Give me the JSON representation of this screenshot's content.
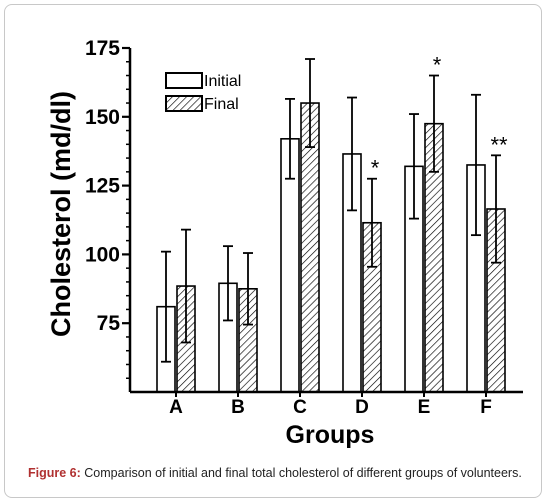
{
  "caption": {
    "label": "Figure 6:",
    "text": " Comparison of initial and final total cholesterol of different groups of volunteers."
  },
  "colors": {
    "axis": "#000000",
    "bar_fill_initial": "#ffffff",
    "hatch": "#000000",
    "frame_border": "#c8c8c8",
    "caption_label": "#b03030"
  },
  "chart_data": {
    "type": "bar",
    "title": "",
    "xlabel": "Groups",
    "ylabel": "Cholesterol (md/dl)",
    "ylim": [
      50,
      175
    ],
    "yticks": [
      75,
      100,
      125,
      150,
      175
    ],
    "grid": false,
    "legend_position": "top-left",
    "categories": [
      "A",
      "B",
      "C",
      "D",
      "E",
      "F"
    ],
    "series": [
      {
        "name": "Initial",
        "pattern": "open",
        "values": [
          81,
          89.5,
          142,
          136.5,
          132,
          132.5
        ],
        "errors": [
          20,
          13.5,
          14.5,
          20.5,
          19,
          25.5
        ],
        "annotations": [
          "",
          "",
          "",
          "",
          "",
          ""
        ]
      },
      {
        "name": "Final",
        "pattern": "hatched",
        "values": [
          88.5,
          87.5,
          155,
          111.5,
          147.5,
          116.5
        ],
        "errors": [
          20.5,
          13,
          16,
          16,
          17.5,
          19.5
        ],
        "annotations": [
          "",
          "",
          "",
          "*",
          "*",
          "**"
        ]
      }
    ]
  }
}
